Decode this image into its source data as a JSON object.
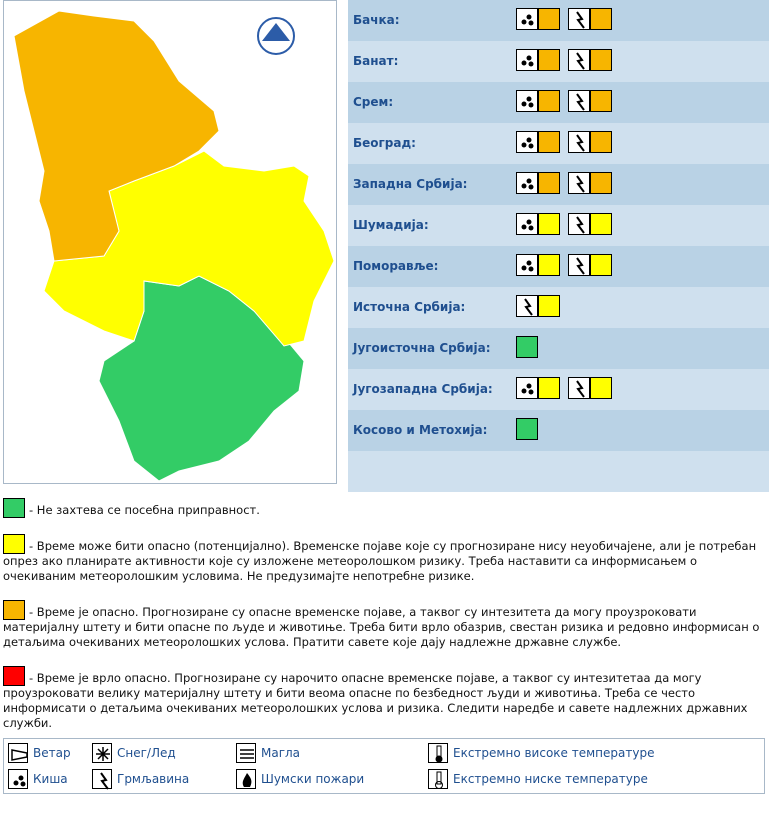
{
  "regions": [
    {
      "name": "Бачка:",
      "warnings": [
        {
          "icon": "rain",
          "color": "#f7b500"
        },
        {
          "icon": "thunder",
          "color": "#f7b500"
        }
      ]
    },
    {
      "name": "Банат:",
      "warnings": [
        {
          "icon": "rain",
          "color": "#f7b500"
        },
        {
          "icon": "thunder",
          "color": "#f7b500"
        }
      ]
    },
    {
      "name": "Срем:",
      "warnings": [
        {
          "icon": "rain",
          "color": "#f7b500"
        },
        {
          "icon": "thunder",
          "color": "#f7b500"
        }
      ]
    },
    {
      "name": "Београд:",
      "warnings": [
        {
          "icon": "rain",
          "color": "#f7b500"
        },
        {
          "icon": "thunder",
          "color": "#f7b500"
        }
      ]
    },
    {
      "name": "Западна Србија:",
      "warnings": [
        {
          "icon": "rain",
          "color": "#f7b500"
        },
        {
          "icon": "thunder",
          "color": "#f7b500"
        }
      ]
    },
    {
      "name": "Шумадија:",
      "warnings": [
        {
          "icon": "rain",
          "color": "#ffff00"
        },
        {
          "icon": "thunder",
          "color": "#ffff00"
        }
      ]
    },
    {
      "name": "Поморавље:",
      "warnings": [
        {
          "icon": "rain",
          "color": "#ffff00"
        },
        {
          "icon": "thunder",
          "color": "#ffff00"
        }
      ]
    },
    {
      "name": "Источна Србија:",
      "warnings": [
        {
          "icon": "thunder",
          "color": "#ffff00"
        }
      ]
    },
    {
      "name": "Југоисточна Србија:",
      "warnings": [
        {
          "color": "#33cc66"
        }
      ]
    },
    {
      "name": "Југозападна Србија:",
      "warnings": [
        {
          "icon": "rain",
          "color": "#ffff00"
        },
        {
          "icon": "thunder",
          "color": "#ffff00"
        }
      ]
    },
    {
      "name": "Косово и Метохија:",
      "warnings": [
        {
          "color": "#33cc66"
        }
      ]
    }
  ],
  "levels": [
    {
      "color": "#33cc66",
      "text": "- Не захтева се посебна приправност."
    },
    {
      "color": "#ffff00",
      "text": "- Време може бити опасно (потенцијално). Временске појаве које су прогнозиране нису неуобичајене, али је потребан опрез ако планирате активности које су изложене метеоролошком ризику. Треба наставити са информисањем о очекиваним метеоролошким условима. Не предузимајте непотребне ризике."
    },
    {
      "color": "#f7b500",
      "text": "- Време је опасно. Прогнозиране су опасне временске појаве, а таквог су интезитета да могу проузроковати материјалну штету и бити опасне по људе и животиње. Треба бити врло обазрив, свестан ризика и редовно информисан о детаљима очекиваних метеоролошких услова. Пратити савете које дају надлежне државне службе."
    },
    {
      "color": "#ff0000",
      "text": "- Време је врло опасно. Прогнозиране су нарочито опасне временске појаве, а таквог су интезитетаа да могу проузроковати велику материјалну штету и бити веома опасне по безбедност људи и животиња. Треба се често информисати о детаљима очекиваних метеоролошких услова и ризика. Следити наредбе и савете надлежних државних служби."
    }
  ],
  "icon_legend": [
    {
      "icon": "wind",
      "label": "Ветар"
    },
    {
      "icon": "rain",
      "label": "Киша"
    },
    {
      "icon": "snow",
      "label": "Снег/Лед"
    },
    {
      "icon": "thunder",
      "label": "Грмљавина"
    },
    {
      "icon": "fog",
      "label": "Магла"
    },
    {
      "icon": "fire",
      "label": "Шумски пожари"
    },
    {
      "icon": "hot",
      "label": "Екстремно високе температуре"
    },
    {
      "icon": "cold",
      "label": "Екстремно ниске температуре"
    }
  ]
}
